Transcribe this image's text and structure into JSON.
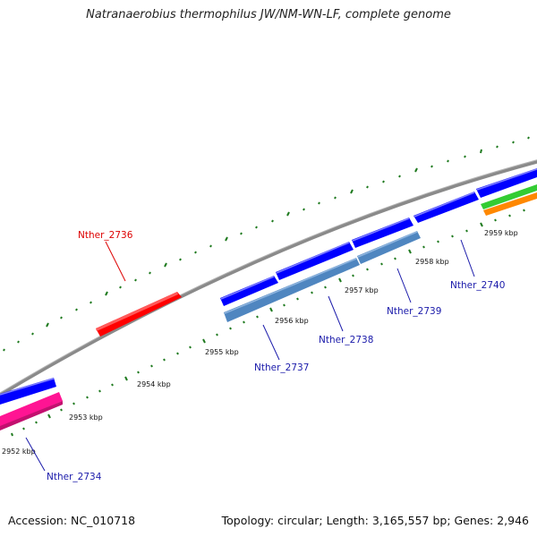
{
  "title": "Natranaerobius thermophilus JW/NM-WN-LF, complete genome",
  "accession": "Accession: NC_010718",
  "topology": "Topology: circular; Length: 3,165,557 bp; Genes: 2,946",
  "colors": {
    "backbone": "#8a8a8a",
    "tick": "#1f7a1f",
    "cds_blue": "#0000ff",
    "cds_steel": "#4f86c0",
    "red": "#ff0000",
    "magenta": "#ff1493",
    "green": "#33cc33",
    "orange": "#ff8800",
    "label_blue": "#1a1aaa",
    "label_red": "#dd0000"
  },
  "tick_labels": [
    "2952 kbp",
    "2953 kbp",
    "2954 kbp",
    "2955 kbp",
    "2956 kbp",
    "2957 kbp",
    "2958 kbp",
    "2959 kbp"
  ],
  "gene_labels": [
    "Nther_2736",
    "Nther_2734",
    "Nther_2737",
    "Nther_2738",
    "Nther_2739",
    "Nther_2740"
  ]
}
